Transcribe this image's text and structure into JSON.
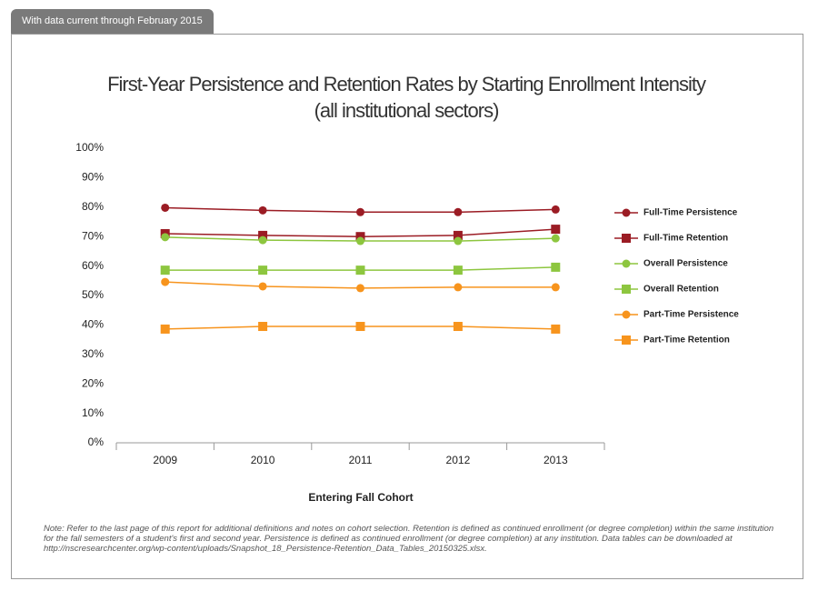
{
  "header": {
    "tab": "With data current through February 2015"
  },
  "chart_data": {
    "type": "line",
    "title": "First-Year Persistence and Retention Rates by Starting Enrollment Intensity",
    "subtitle": "(all institutional sectors)",
    "x_label": "Entering Fall Cohort",
    "categories": [
      "2009",
      "2010",
      "2011",
      "2012",
      "2013"
    ],
    "ylim": [
      0,
      100
    ],
    "yticks": [
      {
        "value": 0,
        "label": "0%"
      },
      {
        "value": 10,
        "label": "10%"
      },
      {
        "value": 20,
        "label": "20%"
      },
      {
        "value": 30,
        "label": "30%"
      },
      {
        "value": 40,
        "label": "40%"
      },
      {
        "value": 50,
        "label": "50%"
      },
      {
        "value": 60,
        "label": "60%"
      },
      {
        "value": 70,
        "label": "70%"
      },
      {
        "value": 80,
        "label": "80%"
      },
      {
        "value": 90,
        "label": "90%"
      },
      {
        "value": 100,
        "label": "100%"
      }
    ],
    "legend": "right",
    "series": [
      {
        "name": "Full-Time Persistence",
        "color": "#9b1c24",
        "marker": "circle",
        "values": [
          79.8,
          78.9,
          78.3,
          78.3,
          79.2
        ]
      },
      {
        "name": "Full-Time Retention",
        "color": "#9b1c24",
        "marker": "square",
        "values": [
          71.0,
          70.4,
          70.0,
          70.4,
          72.5
        ]
      },
      {
        "name": "Overall Persistence",
        "color": "#8dc63f",
        "marker": "circle",
        "values": [
          69.8,
          68.8,
          68.5,
          68.5,
          69.4
        ]
      },
      {
        "name": "Overall Retention",
        "color": "#8dc63f",
        "marker": "square",
        "values": [
          58.6,
          58.6,
          58.6,
          58.6,
          59.6
        ]
      },
      {
        "name": "Part-Time Persistence",
        "color": "#f7941d",
        "marker": "circle",
        "values": [
          54.6,
          53.1,
          52.5,
          52.8,
          52.8
        ]
      },
      {
        "name": "Part-Time Retention",
        "color": "#f7941d",
        "marker": "square",
        "values": [
          38.6,
          39.5,
          39.5,
          39.5,
          38.6
        ]
      }
    ]
  },
  "note": "Note: Refer to the last page of this report for additional definitions and notes on cohort selection. Retention is defined as continued enrollment (or degree completion) within the same institution for the fall semesters of a student's first and second year. Persistence is defined as continued enrollment (or degree completion) at any institution. Data tables can be downloaded at http://nscresearchcenter.org/wp-content/uploads/Snapshot_18_Persistence-Retention_Data_Tables_20150325.xlsx."
}
